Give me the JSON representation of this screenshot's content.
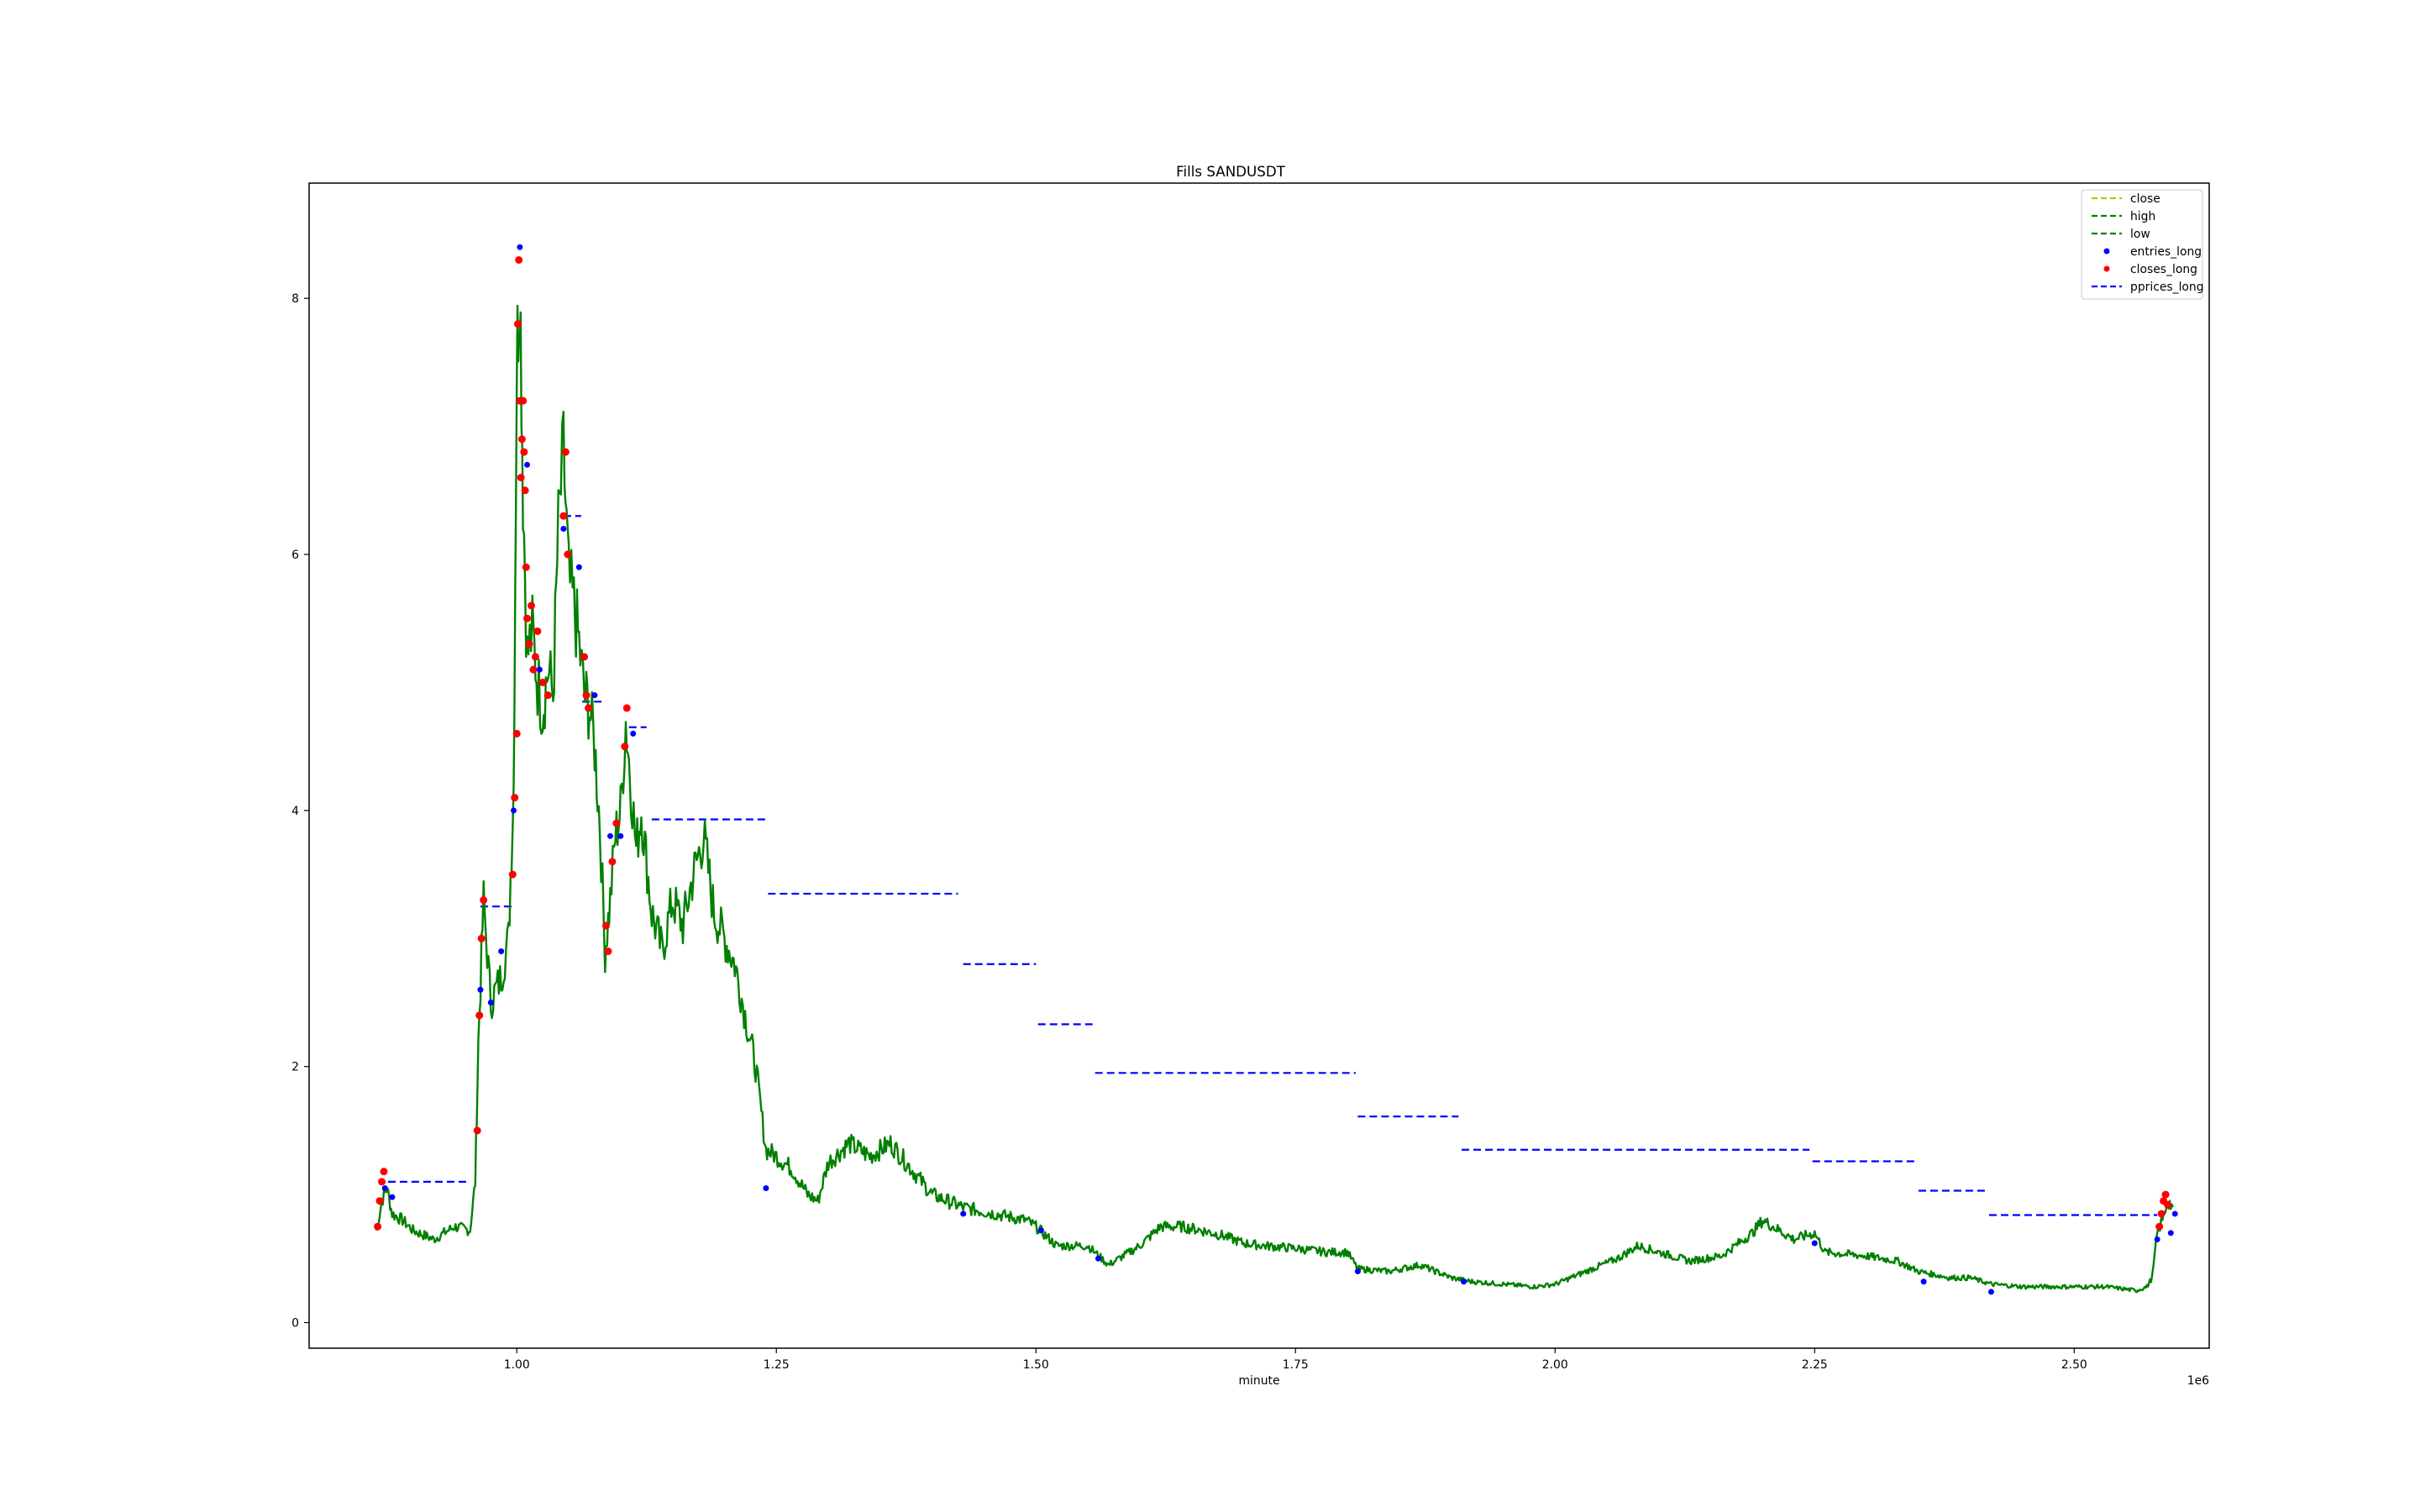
{
  "chart_data": {
    "type": "line",
    "title": "Fills SANDUSDT",
    "xlabel": "minute",
    "ylabel": "",
    "x_offset_label": "1e6",
    "xlim": [
      0.8,
      2.63
    ],
    "ylim": [
      -0.2,
      8.9
    ],
    "x_unit": "1e6 minute",
    "xticks": [
      1.0,
      1.25,
      1.5,
      1.75,
      2.0,
      2.25,
      2.5
    ],
    "xtick_labels": [
      "1.00",
      "1.25",
      "1.50",
      "1.75",
      "2.00",
      "2.25",
      "2.50"
    ],
    "yticks": [
      0,
      2,
      4,
      6,
      8
    ],
    "ytick_labels": [
      "0",
      "2",
      "4",
      "6",
      "8"
    ],
    "grid": false,
    "legend_placement": "top-right",
    "colors": {
      "close": "#bfbf00",
      "high": "#008000",
      "low": "#008000",
      "entries_long": "#0000ff",
      "closes_long": "#ff0000",
      "pprices_long": "#0000ff"
    },
    "legend": [
      {
        "label": "close",
        "style": "dashed-line",
        "color": "#bfbf00"
      },
      {
        "label": "high",
        "style": "dashed-line",
        "color": "#008000"
      },
      {
        "label": "low",
        "style": "dashed-line",
        "color": "#008000"
      },
      {
        "label": "entries_long",
        "style": "dot",
        "color": "#0000ff"
      },
      {
        "label": "closes_long",
        "style": "dot",
        "color": "#ff0000"
      },
      {
        "label": "pprices_long",
        "style": "dashed-line",
        "color": "#0000ff"
      }
    ],
    "price_series": {
      "name": "low",
      "x": [
        0.865,
        0.87,
        0.875,
        0.88,
        0.89,
        0.9,
        0.92,
        0.94,
        0.955,
        0.96,
        0.963,
        0.968,
        0.975,
        0.985,
        0.992,
        0.997,
        1.0,
        1.003,
        1.006,
        1.01,
        1.015,
        1.02,
        1.025,
        1.03,
        1.035,
        1.04,
        1.045,
        1.05,
        1.055,
        1.06,
        1.065,
        1.07,
        1.075,
        1.08,
        1.085,
        1.09,
        1.095,
        1.1,
        1.105,
        1.11,
        1.115,
        1.12,
        1.13,
        1.14,
        1.15,
        1.16,
        1.17,
        1.18,
        1.19,
        1.2,
        1.21,
        1.22,
        1.23,
        1.24,
        1.25,
        1.265,
        1.28,
        1.29,
        1.3,
        1.32,
        1.34,
        1.36,
        1.38,
        1.4,
        1.43,
        1.46,
        1.49,
        1.5,
        1.52,
        1.55,
        1.57,
        1.6,
        1.62,
        1.64,
        1.66,
        1.68,
        1.7,
        1.72,
        1.75,
        1.78,
        1.8,
        1.81,
        1.84,
        1.87,
        1.9,
        1.92,
        1.95,
        1.98,
        2.0,
        2.03,
        2.06,
        2.08,
        2.1,
        2.13,
        2.16,
        2.19,
        2.2,
        2.23,
        2.25,
        2.26,
        2.3,
        2.33,
        2.35,
        2.38,
        2.4,
        2.42,
        2.45,
        2.48,
        2.5,
        2.53,
        2.56,
        2.57,
        2.575,
        2.58,
        2.585,
        2.59,
        2.595
      ],
      "y": [
        0.72,
        0.95,
        1.05,
        0.85,
        0.8,
        0.72,
        0.65,
        0.75,
        0.72,
        1.1,
        2.2,
        3.3,
        2.5,
        2.7,
        3.0,
        4.2,
        7.5,
        8.2,
        6.5,
        5.2,
        5.4,
        5.0,
        4.8,
        5.1,
        4.9,
        6.2,
        6.8,
        5.8,
        5.6,
        5.3,
        4.9,
        4.8,
        4.5,
        3.9,
        2.9,
        3.3,
        3.8,
        4.0,
        4.7,
        4.2,
        3.7,
        4.0,
        3.2,
        2.9,
        3.3,
        3.1,
        3.5,
        3.8,
        3.2,
        3.0,
        2.8,
        2.4,
        2.0,
        1.35,
        1.3,
        1.2,
        1.0,
        0.95,
        1.25,
        1.4,
        1.3,
        1.4,
        1.2,
        1.0,
        0.9,
        0.85,
        0.8,
        0.75,
        0.6,
        0.6,
        0.45,
        0.6,
        0.75,
        0.75,
        0.72,
        0.68,
        0.62,
        0.6,
        0.58,
        0.55,
        0.55,
        0.42,
        0.4,
        0.45,
        0.35,
        0.32,
        0.3,
        0.28,
        0.3,
        0.4,
        0.5,
        0.6,
        0.55,
        0.48,
        0.52,
        0.7,
        0.8,
        0.65,
        0.7,
        0.55,
        0.52,
        0.48,
        0.4,
        0.35,
        0.35,
        0.3,
        0.28,
        0.28,
        0.28,
        0.28,
        0.25,
        0.28,
        0.35,
        0.7,
        0.8,
        0.95,
        0.9
      ]
    },
    "pprices_long": [
      {
        "x_start": 0.876,
        "x_end": 0.955,
        "y": 1.1
      },
      {
        "x_start": 0.965,
        "x_end": 0.995,
        "y": 3.25
      },
      {
        "x_start": 1.045,
        "x_end": 1.062,
        "y": 6.3
      },
      {
        "x_start": 1.063,
        "x_end": 1.082,
        "y": 4.85
      },
      {
        "x_start": 1.108,
        "x_end": 1.125,
        "y": 4.65
      },
      {
        "x_start": 1.13,
        "x_end": 1.24,
        "y": 3.93
      },
      {
        "x_start": 1.242,
        "x_end": 1.425,
        "y": 3.35
      },
      {
        "x_start": 1.43,
        "x_end": 1.5,
        "y": 2.8
      },
      {
        "x_start": 1.502,
        "x_end": 1.555,
        "y": 2.33
      },
      {
        "x_start": 1.557,
        "x_end": 1.808,
        "y": 1.95
      },
      {
        "x_start": 1.81,
        "x_end": 1.907,
        "y": 1.61
      },
      {
        "x_start": 1.91,
        "x_end": 2.245,
        "y": 1.35
      },
      {
        "x_start": 2.248,
        "x_end": 2.348,
        "y": 1.26
      },
      {
        "x_start": 2.35,
        "x_end": 2.415,
        "y": 1.03
      },
      {
        "x_start": 2.418,
        "x_end": 2.58,
        "y": 0.84
      }
    ],
    "closes_long": {
      "x": [
        0.866,
        0.868,
        0.87,
        0.872,
        0.962,
        0.964,
        0.966,
        0.968,
        0.996,
        0.998,
        1.0,
        1.001,
        1.002,
        1.003,
        1.004,
        1.005,
        1.006,
        1.007,
        1.008,
        1.009,
        1.01,
        1.012,
        1.014,
        1.016,
        1.018,
        1.02,
        1.025,
        1.03,
        1.045,
        1.047,
        1.049,
        1.065,
        1.067,
        1.069,
        1.086,
        1.088,
        1.092,
        1.096,
        1.104,
        1.106,
        2.582,
        2.584,
        2.586,
        2.588,
        2.59
      ],
      "y": [
        0.75,
        0.95,
        1.1,
        1.18,
        1.5,
        2.4,
        3.0,
        3.3,
        3.5,
        4.1,
        4.6,
        7.8,
        8.3,
        7.2,
        6.6,
        6.9,
        7.2,
        6.8,
        6.5,
        5.9,
        5.5,
        5.3,
        5.6,
        5.1,
        5.2,
        5.4,
        5.0,
        4.9,
        6.3,
        6.8,
        6.0,
        5.2,
        4.9,
        4.8,
        3.1,
        2.9,
        3.6,
        3.9,
        4.5,
        4.8,
        0.75,
        0.85,
        0.95,
        1.0,
        0.92
      ]
    },
    "entries_long": {
      "x": [
        0.873,
        0.88,
        0.965,
        0.975,
        0.985,
        0.997,
        1.003,
        1.01,
        1.022,
        1.045,
        1.06,
        1.075,
        1.09,
        1.1,
        1.112,
        1.24,
        1.43,
        1.505,
        1.56,
        1.81,
        1.912,
        2.25,
        2.355,
        2.42,
        2.58,
        2.593,
        2.597
      ],
      "y": [
        1.05,
        0.98,
        2.6,
        2.5,
        2.9,
        4.0,
        8.4,
        6.7,
        5.1,
        6.2,
        5.9,
        4.9,
        3.8,
        3.8,
        4.6,
        1.05,
        0.85,
        0.72,
        0.5,
        0.4,
        0.32,
        0.62,
        0.32,
        0.24,
        0.65,
        0.7,
        0.85
      ]
    }
  }
}
